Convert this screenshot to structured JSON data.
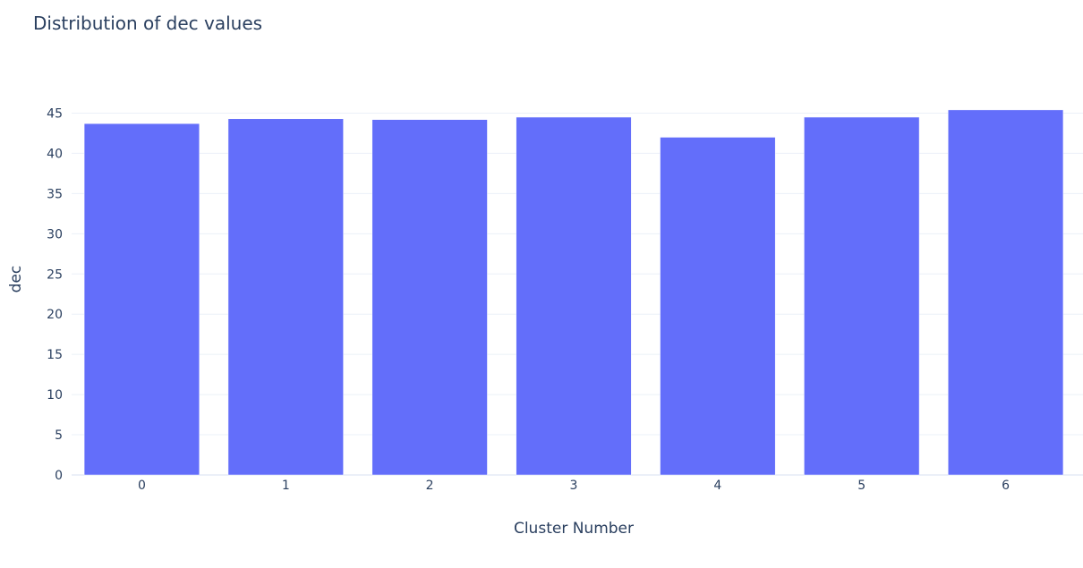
{
  "chart_data": {
    "type": "bar",
    "title": "Distribution of dec values",
    "xlabel": "Cluster Number",
    "ylabel": "dec",
    "categories": [
      "0",
      "1",
      "2",
      "3",
      "4",
      "5",
      "6"
    ],
    "values": [
      43.7,
      44.3,
      44.2,
      44.5,
      42.0,
      44.5,
      45.4
    ],
    "ylim": [
      0,
      47.5
    ],
    "yticks": [
      0,
      5,
      10,
      15,
      20,
      25,
      30,
      35,
      40,
      45
    ],
    "ytick_labels": [
      "0",
      "5",
      "10",
      "15",
      "20",
      "25",
      "30",
      "35",
      "40",
      "45"
    ],
    "grid": true,
    "legend": "none",
    "colors": {
      "bar": "#636efa",
      "grid": "#ebf0f8",
      "text": "#2a3f5f",
      "background": "#ffffff"
    }
  }
}
